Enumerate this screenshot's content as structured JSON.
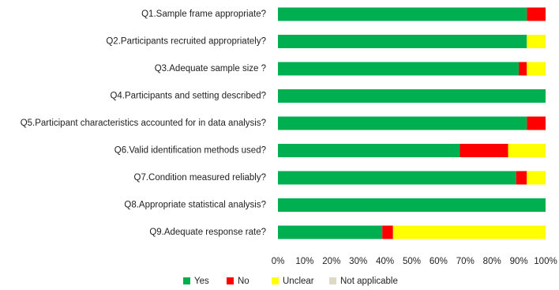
{
  "chart_data": {
    "type": "stacked-barh",
    "categories": [
      "Q1.Sample frame appropriate?",
      "Q2.Participants recruited appropriately?",
      "Q3.Adequate sample size ?",
      "Q4.Participants and setting described?",
      "Q5.Participant characteristics accounted for in data analysis?",
      "Q6.Valid identification methods used?",
      "Q7.Condition measured reliably?",
      "Q8.Appropriate statistical analysis?",
      "Q9.Adequate response rate?"
    ],
    "series": [
      {
        "name": "Yes",
        "color": "#00b050",
        "values": [
          93,
          93,
          90,
          100,
          93,
          68,
          89,
          100,
          39
        ]
      },
      {
        "name": "No",
        "color": "#ff0000",
        "values": [
          7,
          0,
          3,
          0,
          7,
          18,
          4,
          0,
          4
        ]
      },
      {
        "name": "Unclear",
        "color": "#ffff00",
        "values": [
          0,
          7,
          7,
          0,
          0,
          14,
          7,
          0,
          57
        ]
      },
      {
        "name": "Not applicable",
        "color": "#ddd9c4",
        "values": [
          0,
          0,
          0,
          0,
          0,
          0,
          0,
          0,
          0
        ]
      }
    ],
    "xlim": [
      0,
      100
    ],
    "xticks": [
      {
        "value": 0,
        "label": "0%"
      },
      {
        "value": 10,
        "label": "10%"
      },
      {
        "value": 20,
        "label": "20%"
      },
      {
        "value": 30,
        "label": "30%"
      },
      {
        "value": 40,
        "label": "40%"
      },
      {
        "value": 50,
        "label": "50%"
      },
      {
        "value": 60,
        "label": "60%"
      },
      {
        "value": 70,
        "label": "70%"
      },
      {
        "value": 80,
        "label": "80%"
      },
      {
        "value": 90,
        "label": "90%"
      },
      {
        "value": 100,
        "label": "100%"
      }
    ],
    "legend": "bottom"
  }
}
